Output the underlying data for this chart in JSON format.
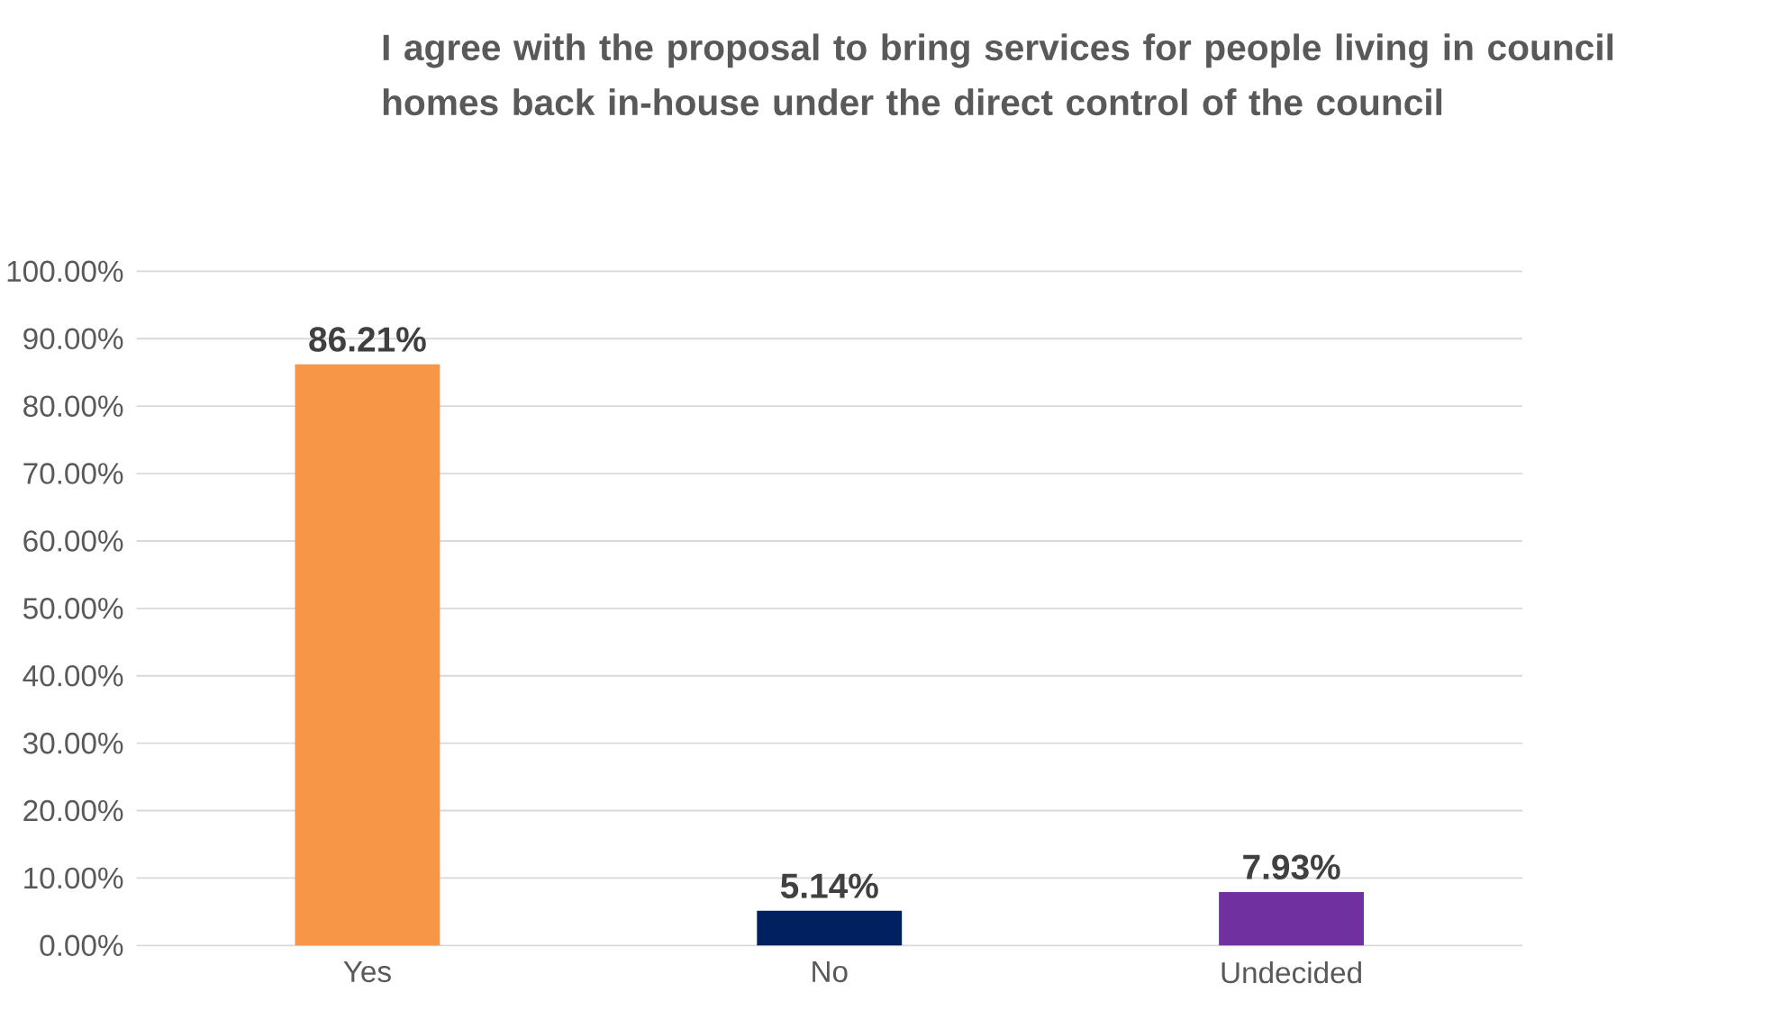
{
  "chart_data": {
    "type": "bar",
    "title": "I agree with the proposal to bring services for people living in council homes back in-house under the direct control of the council",
    "categories": [
      "Yes",
      "No",
      "Undecided"
    ],
    "values": [
      86.21,
      5.14,
      7.93
    ],
    "colors": [
      "#f79646",
      "#002060",
      "#7030a0"
    ],
    "value_labels": [
      "86.21%",
      "5.14%",
      "7.93%"
    ],
    "ylim": [
      0,
      100
    ],
    "yticks": [
      {
        "value": 0,
        "label": "0.00%"
      },
      {
        "value": 10,
        "label": "10.00%"
      },
      {
        "value": 20,
        "label": "20.00%"
      },
      {
        "value": 30,
        "label": "30.00%"
      },
      {
        "value": 40,
        "label": "40.00%"
      },
      {
        "value": 50,
        "label": "50.00%"
      },
      {
        "value": 60,
        "label": "60.00%"
      },
      {
        "value": 70,
        "label": "70.00%"
      },
      {
        "value": 80,
        "label": "80.00%"
      },
      {
        "value": 90,
        "label": "90.00%"
      },
      {
        "value": 100,
        "label": "100.00%"
      }
    ],
    "grid": "y"
  }
}
